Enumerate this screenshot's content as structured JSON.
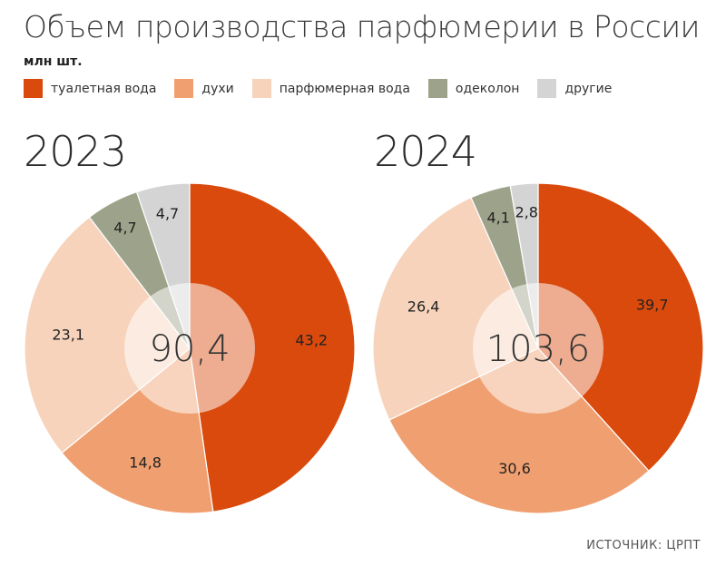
{
  "title": "Объем производства парфюмерии в России",
  "subtitle": "млн шт.",
  "source": "ИСТОЧНИК: ЦРПТ",
  "chart_data": {
    "type": "pie",
    "title": "Объем производства парфюмерии в России",
    "unit": "млн шт.",
    "legend_position": "top",
    "categories": [
      "туалетная вода",
      "духи",
      "парфюмерная вода",
      "одеколон",
      "другие"
    ],
    "colors": [
      "#d94a0c",
      "#f0a070",
      "#f7d3bc",
      "#9da38a",
      "#d4d4d4"
    ],
    "series": [
      {
        "name": "2023",
        "total": "90,4",
        "values": [
          43.2,
          14.8,
          23.1,
          4.7,
          4.7
        ],
        "labels": [
          "43,2",
          "14,8",
          "23,1",
          "4,7",
          "4,7"
        ]
      },
      {
        "name": "2024",
        "total": "103,6",
        "values": [
          39.7,
          30.6,
          26.4,
          4.1,
          2.8
        ],
        "labels": [
          "39,7",
          "30,6",
          "26,4",
          "4,1",
          "2,8"
        ]
      }
    ]
  }
}
